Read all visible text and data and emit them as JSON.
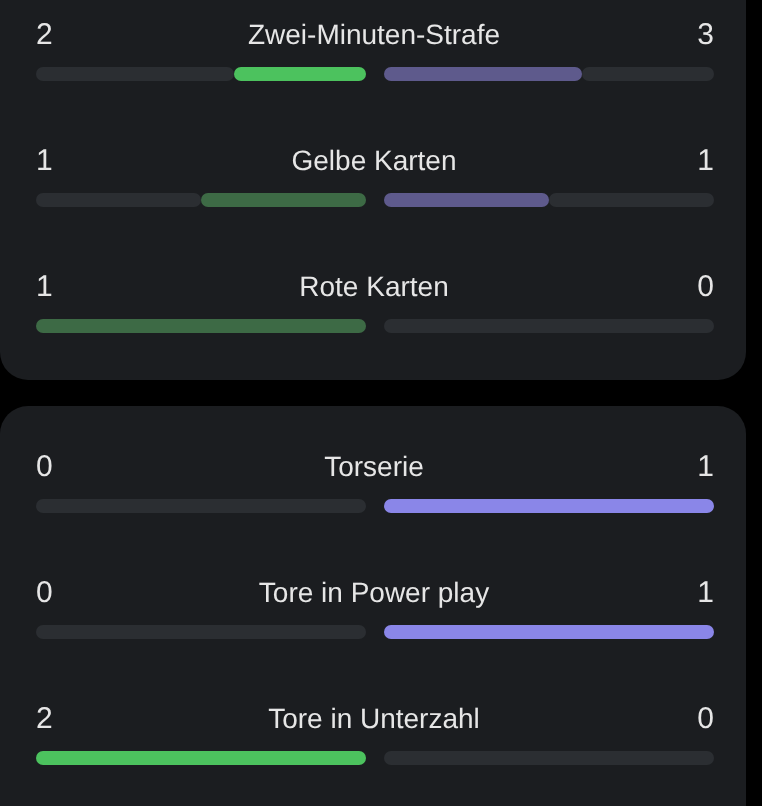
{
  "chart_data": [
    {
      "type": "other",
      "categories": [
        "Zwei-Minuten-Strafe",
        "Gelbe Karten",
        "Rote Karten"
      ],
      "data_labels": true,
      "series": [
        {
          "colors": [
            "#4cc25e",
            "#3d6a45",
            "#3d6a45"
          ],
          "values": [
            2,
            1,
            1
          ]
        },
        {
          "colors": [
            "#5e5a8c",
            "#5e5a8c",
            null
          ],
          "values": [
            3,
            1,
            0
          ]
        }
      ]
    },
    {
      "type": "other",
      "categories": [
        "Torserie",
        "Tore in Power play",
        "Tore in Unterzahl"
      ],
      "data_labels": true,
      "series": [
        {
          "colors": [
            null,
            null,
            "#4cc25e"
          ],
          "values": [
            0,
            0,
            2
          ]
        },
        {
          "colors": [
            "#8a86e8",
            "#8a86e8",
            null
          ],
          "values": [
            1,
            1,
            0
          ]
        }
      ]
    }
  ]
}
